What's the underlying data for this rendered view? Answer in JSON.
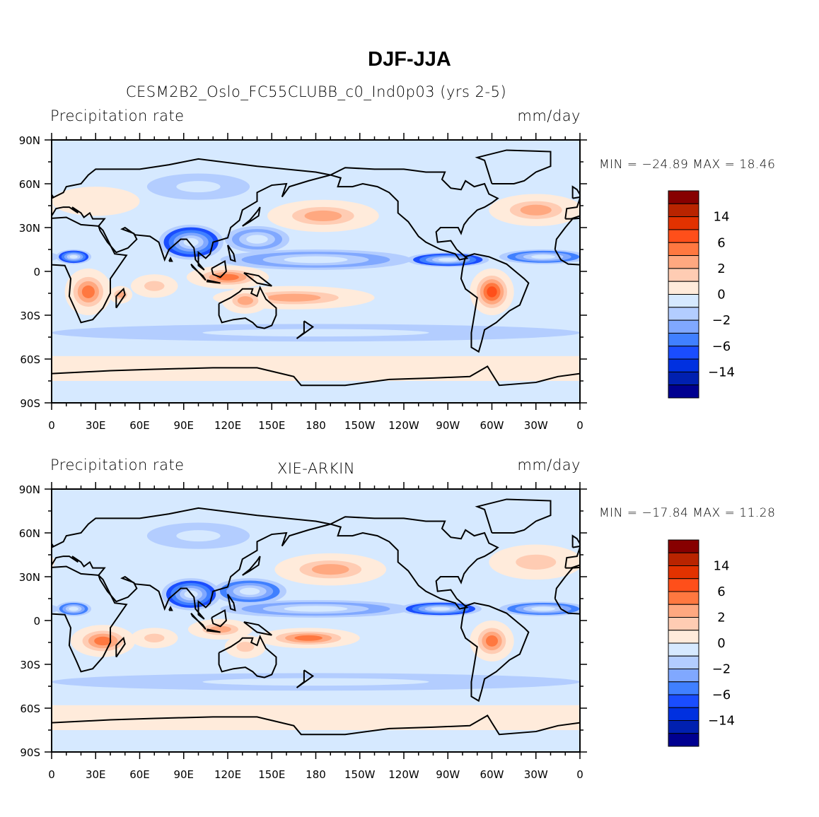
{
  "title": "DJF-JJA",
  "chart_data": {
    "type": "heatmap",
    "levels": [
      -20,
      -14,
      -10,
      -6,
      -4,
      -2,
      -1,
      0,
      1,
      2,
      4,
      6,
      10,
      14,
      20
    ],
    "colors": [
      "#000090",
      "#0020b0",
      "#0030e0",
      "#1a4dff",
      "#4080ff",
      "#80a8ff",
      "#b3cdff",
      "#d6e9ff",
      "#ffebdb",
      "#ffccb3",
      "#ffa880",
      "#ff7840",
      "#ff4f1a",
      "#e23200",
      "#b92400",
      "#870000"
    ],
    "colorbar_labels": [
      "14",
      "6",
      "2",
      "0",
      "−2",
      "−6",
      "−14"
    ],
    "colorbar_label_values": [
      14,
      6,
      2,
      0,
      -2,
      -6,
      -14
    ],
    "x_ticks": [
      "0",
      "30E",
      "60E",
      "90E",
      "120E",
      "150E",
      "180",
      "150W",
      "120W",
      "90W",
      "60W",
      "30W",
      "0"
    ],
    "y_ticks": [
      "90N",
      "60N",
      "30N",
      "0",
      "30S",
      "60S",
      "90S"
    ],
    "xlim": [
      0,
      360
    ],
    "ylim": [
      -90,
      90
    ],
    "panels": [
      {
        "left_string": "Precipitation rate",
        "center_string": "CESM2B2_Oslo_FC55CLUBB_c0_Ind0p03 (yrs 2-5)",
        "right_string": "mm/day",
        "minmax": "MIN = −24.89 MAX =   18.46",
        "min": -24.89,
        "max": 18.46,
        "features": [
          {
            "lon": 180,
            "lat": -42,
            "rx": 180,
            "ry": 6,
            "v": -2
          },
          {
            "lon": 30,
            "lat": 48,
            "rx": 30,
            "ry": 10,
            "v": 1
          },
          {
            "lon": 100,
            "lat": 58,
            "rx": 35,
            "ry": 9,
            "v": -2
          },
          {
            "lon": 185,
            "lat": 38,
            "rx": 38,
            "ry": 11,
            "v": 4
          },
          {
            "lon": 330,
            "lat": 42,
            "rx": 32,
            "ry": 11,
            "v": 4
          },
          {
            "lon": 180,
            "lat": 8,
            "rx": 65,
            "ry": 7,
            "v": -4
          },
          {
            "lon": 140,
            "lat": 22,
            "rx": 22,
            "ry": 9,
            "v": -4
          },
          {
            "lon": 95,
            "lat": 20,
            "rx": 22,
            "ry": 12,
            "v": -10
          },
          {
            "lon": 120,
            "lat": -4,
            "rx": 28,
            "ry": 8,
            "v": 6
          },
          {
            "lon": 165,
            "lat": -18,
            "rx": 55,
            "ry": 8,
            "v": 4
          },
          {
            "lon": 132,
            "lat": -20,
            "rx": 16,
            "ry": 9,
            "v": 4
          },
          {
            "lon": 70,
            "lat": -10,
            "rx": 16,
            "ry": 8,
            "v": 2
          },
          {
            "lon": 25,
            "lat": -14,
            "rx": 16,
            "ry": 16,
            "v": 6
          },
          {
            "lon": 47,
            "lat": -16,
            "rx": 8,
            "ry": 6,
            "v": 4
          },
          {
            "lon": 300,
            "lat": -14,
            "rx": 15,
            "ry": 16,
            "v": 10
          },
          {
            "lon": 270,
            "lat": 8,
            "rx": 28,
            "ry": 5,
            "v": -10
          },
          {
            "lon": 335,
            "lat": 10,
            "rx": 30,
            "ry": 5,
            "v": -6
          },
          {
            "lon": 15,
            "lat": 10,
            "rx": 12,
            "ry": 5,
            "v": -10
          }
        ]
      },
      {
        "left_string": "Precipitation rate",
        "center_string": "XIE-ARKIN",
        "right_string": "mm/day",
        "minmax": "MIN = −17.84 MAX =   11.28",
        "min": -17.84,
        "max": 11.28,
        "features": [
          {
            "lon": 180,
            "lat": -42,
            "rx": 180,
            "ry": 6,
            "v": -2
          },
          {
            "lon": 100,
            "lat": 58,
            "rx": 35,
            "ry": 9,
            "v": -2
          },
          {
            "lon": 190,
            "lat": 35,
            "rx": 38,
            "ry": 11,
            "v": 4
          },
          {
            "lon": 330,
            "lat": 40,
            "rx": 32,
            "ry": 12,
            "v": 2
          },
          {
            "lon": 180,
            "lat": 8,
            "rx": 65,
            "ry": 6,
            "v": -4
          },
          {
            "lon": 135,
            "lat": 20,
            "rx": 25,
            "ry": 9,
            "v": -6
          },
          {
            "lon": 95,
            "lat": 18,
            "rx": 20,
            "ry": 11,
            "v": -10
          },
          {
            "lon": 115,
            "lat": -6,
            "rx": 22,
            "ry": 7,
            "v": 4
          },
          {
            "lon": 175,
            "lat": -12,
            "rx": 35,
            "ry": 7,
            "v": 6
          },
          {
            "lon": 132,
            "lat": -18,
            "rx": 14,
            "ry": 8,
            "v": 2
          },
          {
            "lon": 70,
            "lat": -12,
            "rx": 16,
            "ry": 7,
            "v": 2
          },
          {
            "lon": 35,
            "lat": -14,
            "rx": 22,
            "ry": 11,
            "v": 6
          },
          {
            "lon": 300,
            "lat": -14,
            "rx": 15,
            "ry": 14,
            "v": 6
          },
          {
            "lon": 265,
            "lat": 8,
            "rx": 28,
            "ry": 5,
            "v": -10
          },
          {
            "lon": 335,
            "lat": 8,
            "rx": 30,
            "ry": 5,
            "v": -6
          },
          {
            "lon": 15,
            "lat": 8,
            "rx": 12,
            "ry": 5,
            "v": -6
          }
        ]
      }
    ]
  }
}
